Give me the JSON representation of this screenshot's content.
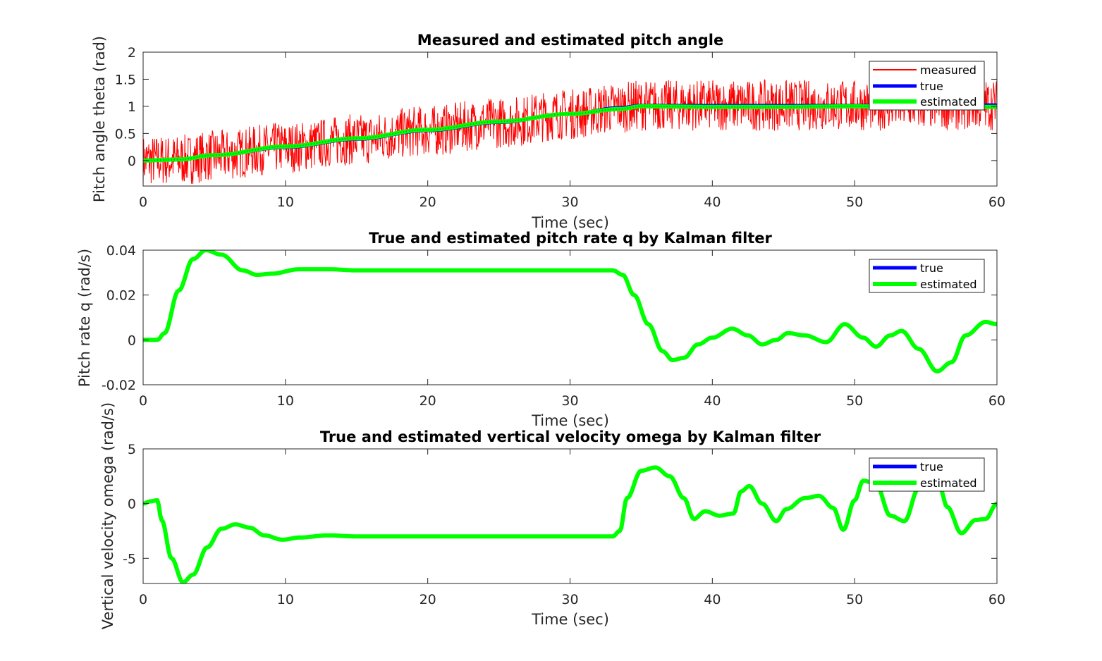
{
  "colors": {
    "measured": "#ff0000",
    "true": "#0000ff",
    "estimated": "#00ff00",
    "estimated_dots": "#1f8f3a",
    "axis": "#262626"
  },
  "chart_data": [
    {
      "type": "line",
      "title": "Measured and estimated pitch angle",
      "xlabel": "Time (sec)",
      "ylabel": "Pitch angle theta (rad)",
      "xlim": [
        0,
        60
      ],
      "ylim": [
        -0.47,
        2
      ],
      "xticks": [
        0,
        10,
        20,
        30,
        40,
        50,
        60
      ],
      "yticks": [
        0,
        0.5,
        1,
        1.5,
        2
      ],
      "xtick_labels": [
        "0",
        "10",
        "20",
        "30",
        "40",
        "50",
        "60"
      ],
      "ytick_labels": [
        "0",
        "0.5",
        "1",
        "1.5",
        "2"
      ],
      "legend": {
        "position": "top-right",
        "entries": [
          "measured",
          "true",
          "estimated"
        ]
      },
      "noise_amplitude": 0.47,
      "series": [
        {
          "name": "true",
          "x": [
            0,
            2.5,
            5,
            10,
            15,
            20,
            25,
            30,
            33.5,
            35,
            40,
            45,
            50,
            55,
            60
          ],
          "y": [
            0,
            0.01,
            0.09,
            0.24,
            0.39,
            0.55,
            0.7,
            0.86,
            0.98,
            1.02,
            1.02,
            1.02,
            1.02,
            1.03,
            1.03
          ]
        },
        {
          "name": "estimated",
          "x": [
            0,
            2.5,
            5,
            10,
            15,
            20,
            25,
            30,
            33.5,
            35,
            40,
            45,
            50,
            55,
            60
          ],
          "y": [
            0,
            0.02,
            0.1,
            0.26,
            0.41,
            0.57,
            0.72,
            0.86,
            0.95,
            1.0,
            0.99,
            0.99,
            1.0,
            0.99,
            0.99
          ]
        },
        {
          "name": "measured",
          "note_style": "true signal plus uniform noise of noise_amplitude",
          "x": [
            0,
            2.5,
            5,
            10,
            15,
            20,
            25,
            30,
            33.5,
            35,
            40,
            45,
            50,
            55,
            60
          ],
          "y": [
            0,
            0.01,
            0.09,
            0.24,
            0.39,
            0.55,
            0.7,
            0.86,
            0.98,
            1.02,
            1.02,
            1.02,
            1.02,
            1.03,
            1.03
          ]
        }
      ]
    },
    {
      "type": "line",
      "title": "True and estimated pitch rate q by Kalman filter",
      "xlabel": "Time (sec)",
      "ylabel": "Pitch rate q (rad/s)",
      "xlim": [
        0,
        60
      ],
      "ylim": [
        -0.02,
        0.04
      ],
      "xticks": [
        0,
        10,
        20,
        30,
        40,
        50,
        60
      ],
      "yticks": [
        -0.02,
        0,
        0.02,
        0.04
      ],
      "xtick_labels": [
        "0",
        "10",
        "20",
        "30",
        "40",
        "50",
        "60"
      ],
      "ytick_labels": [
        "-0.02",
        "0",
        "0.02",
        "0.04"
      ],
      "legend": {
        "position": "top-right",
        "entries": [
          "true",
          "estimated"
        ]
      },
      "series": [
        {
          "name": "true",
          "x": [
            0,
            1,
            1.5,
            2.5,
            3.5,
            4.4,
            5.5,
            7,
            8,
            9,
            11,
            13,
            15,
            20,
            25,
            30,
            33,
            33.7,
            34.5,
            35.5,
            36.5,
            37.2,
            38,
            39,
            40,
            41.4,
            42.5,
            43.5,
            44.5,
            45.3,
            46.5,
            48,
            49.3,
            50.6,
            51.5,
            52.5,
            53.3,
            54.5,
            55.8,
            56.8,
            57.8,
            59.2,
            60
          ],
          "y": [
            0,
            0,
            0.003,
            0.022,
            0.036,
            0.04,
            0.038,
            0.031,
            0.029,
            0.0295,
            0.0315,
            0.0315,
            0.031,
            0.031,
            0.031,
            0.031,
            0.031,
            0.029,
            0.02,
            0.007,
            -0.005,
            -0.009,
            -0.008,
            -0.002,
            0.001,
            0.005,
            0.002,
            -0.002,
            0,
            0.003,
            0.002,
            -0.001,
            0.007,
            0.001,
            -0.003,
            0.002,
            0.004,
            -0.004,
            -0.014,
            -0.01,
            0.002,
            0.008,
            0.007
          ]
        },
        {
          "name": "estimated",
          "x": [
            0,
            1,
            1.5,
            2.5,
            3.5,
            4.4,
            5.5,
            7,
            8,
            9,
            11,
            13,
            15,
            20,
            25,
            30,
            33,
            33.7,
            34.5,
            35.5,
            36.5,
            37.2,
            38,
            39,
            40,
            41.4,
            42.5,
            43.5,
            44.5,
            45.3,
            46.5,
            48,
            49.3,
            50.6,
            51.5,
            52.5,
            53.3,
            54.5,
            55.8,
            56.8,
            57.8,
            59.2,
            60
          ],
          "y": [
            0,
            0,
            0.003,
            0.022,
            0.036,
            0.04,
            0.038,
            0.031,
            0.029,
            0.0295,
            0.0315,
            0.0315,
            0.031,
            0.031,
            0.031,
            0.031,
            0.031,
            0.029,
            0.02,
            0.007,
            -0.005,
            -0.009,
            -0.008,
            -0.002,
            0.001,
            0.005,
            0.002,
            -0.002,
            0,
            0.003,
            0.002,
            -0.001,
            0.007,
            0.001,
            -0.003,
            0.002,
            0.004,
            -0.004,
            -0.014,
            -0.01,
            0.002,
            0.008,
            0.007
          ]
        }
      ]
    },
    {
      "type": "line",
      "title": "True and estimated vertical velocity omega by Kalman filter",
      "xlabel": "Time (sec)",
      "ylabel": "Vertical velocity  omega  (rad/s)",
      "xlim": [
        0,
        60
      ],
      "ylim": [
        -7.3,
        5
      ],
      "xticks": [
        0,
        10,
        20,
        30,
        40,
        50,
        60
      ],
      "yticks": [
        -5,
        0,
        5
      ],
      "xtick_labels": [
        "0",
        "10",
        "20",
        "30",
        "40",
        "50",
        "60"
      ],
      "ytick_labels": [
        "-5",
        "0",
        "5"
      ],
      "legend": {
        "position": "top-right",
        "entries": [
          "true",
          "estimated"
        ]
      },
      "series": [
        {
          "name": "true",
          "x": [
            0,
            0.5,
            1,
            1.3,
            2,
            2.8,
            3.5,
            4.5,
            5.5,
            6.5,
            7.5,
            8.5,
            9.8,
            11,
            13,
            15,
            20,
            25,
            30,
            33,
            33.5,
            34,
            35,
            36,
            37,
            38,
            38.7,
            39.5,
            40.5,
            41.5,
            42,
            42.6,
            43.5,
            44.5,
            45.2,
            46.5,
            47.5,
            48.5,
            49.2,
            50,
            50.6,
            51.5,
            52.5,
            53.5,
            54.5,
            55.3,
            56,
            56.5,
            57.5,
            58.5,
            59.2,
            60
          ],
          "y": [
            0,
            0.2,
            0.3,
            -1.5,
            -5,
            -7.2,
            -6.5,
            -4,
            -2.3,
            -1.9,
            -2.2,
            -2.9,
            -3.3,
            -3.1,
            -2.9,
            -3.0,
            -3.0,
            -3.0,
            -3.0,
            -3.0,
            -2.5,
            0.5,
            3,
            3.3,
            2.5,
            0.5,
            -1.4,
            -0.7,
            -1.1,
            -0.9,
            1.1,
            1.6,
            0,
            -1.6,
            -0.5,
            0.5,
            0.7,
            -0.4,
            -2.4,
            0.3,
            2.1,
            1.8,
            -1.1,
            -1.6,
            1.4,
            2.2,
            1.4,
            -0.3,
            -2.7,
            -1.5,
            -1.4,
            0
          ]
        },
        {
          "name": "estimated",
          "x": [
            0,
            0.5,
            1,
            1.3,
            2,
            2.8,
            3.5,
            4.5,
            5.5,
            6.5,
            7.5,
            8.5,
            9.8,
            11,
            13,
            15,
            20,
            25,
            30,
            33,
            33.5,
            34,
            35,
            36,
            37,
            38,
            38.7,
            39.5,
            40.5,
            41.5,
            42,
            42.6,
            43.5,
            44.5,
            45.2,
            46.5,
            47.5,
            48.5,
            49.2,
            50,
            50.6,
            51.5,
            52.5,
            53.5,
            54.5,
            55.3,
            56,
            56.5,
            57.5,
            58.5,
            59.2,
            60
          ],
          "y": [
            0,
            0.2,
            0.3,
            -1.5,
            -5,
            -7.2,
            -6.5,
            -4,
            -2.3,
            -1.9,
            -2.2,
            -2.9,
            -3.3,
            -3.1,
            -2.9,
            -3.0,
            -3.0,
            -3.0,
            -3.0,
            -3.0,
            -2.5,
            0.5,
            3,
            3.3,
            2.5,
            0.5,
            -1.4,
            -0.7,
            -1.1,
            -0.9,
            1.1,
            1.6,
            0,
            -1.6,
            -0.5,
            0.5,
            0.7,
            -0.4,
            -2.4,
            0.3,
            2.1,
            1.8,
            -1.1,
            -1.6,
            1.4,
            2.2,
            1.4,
            -0.3,
            -2.7,
            -1.5,
            -1.4,
            0
          ]
        }
      ]
    }
  ]
}
